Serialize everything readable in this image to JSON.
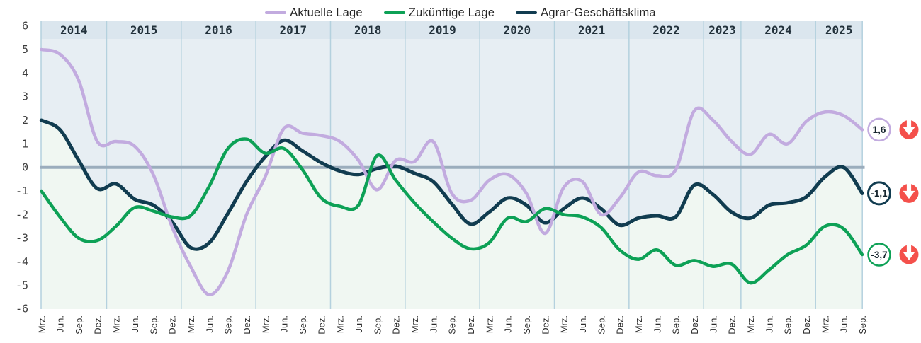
{
  "chart_data": {
    "type": "line",
    "title": "",
    "xlabel": "",
    "ylabel": "",
    "ylim": [
      -6,
      6
    ],
    "y_ticks": [
      6,
      5,
      4,
      3,
      2,
      1,
      0,
      -1,
      -2,
      -3,
      -4,
      -5,
      -6
    ],
    "baseline": 0,
    "grid": "vertical-year-separators",
    "legend_position": "top-center",
    "x_structure": [
      {
        "year": "2014",
        "months": [
          "Mrz.",
          "Jun.",
          "Sep.",
          "Dez."
        ]
      },
      {
        "year": "2015",
        "months": [
          "Mrz.",
          "Jun.",
          "Sep.",
          "Dez."
        ]
      },
      {
        "year": "2016",
        "months": [
          "Mrz.",
          "Jun.",
          "Sep.",
          "Dez."
        ]
      },
      {
        "year": "2017",
        "months": [
          "Mrz.",
          "Jun.",
          "Sep.",
          "Dez."
        ]
      },
      {
        "year": "2018",
        "months": [
          "Mrz.",
          "Jun.",
          "Sep.",
          "Dez."
        ]
      },
      {
        "year": "2019",
        "months": [
          "Mrz.",
          "Jun.",
          "Sep.",
          "Dez."
        ]
      },
      {
        "year": "2020",
        "months": [
          "Mrz.",
          "Jun.",
          "Sep.",
          "Dez."
        ]
      },
      {
        "year": "2021",
        "months": [
          "Mrz.",
          "Jun.",
          "Sep.",
          "Dez."
        ]
      },
      {
        "year": "2022",
        "months": [
          "Mrz.",
          "Jun.",
          "Sep.",
          "Dez."
        ]
      },
      {
        "year": "2023",
        "months": [
          "Jun.",
          "Dez."
        ]
      },
      {
        "year": "2024",
        "months": [
          "Mrz.",
          "Jun.",
          "Sep.",
          "Dez."
        ]
      },
      {
        "year": "2025",
        "months": [
          "Mrz.",
          "Jun.",
          "Sep."
        ]
      }
    ],
    "series": [
      {
        "name": "Aktuelle Lage",
        "color": "#c2abdf",
        "line_width": 4.5,
        "end_value_label": "1,6",
        "trend": "down",
        "values": [
          5.0,
          4.8,
          3.7,
          1.1,
          1.1,
          0.9,
          -0.3,
          -2.5,
          -4.2,
          -5.4,
          -4.4,
          -2.0,
          -0.4,
          1.65,
          1.45,
          1.35,
          1.1,
          0.3,
          -0.95,
          0.3,
          0.25,
          1.1,
          -1.1,
          -1.4,
          -0.55,
          -0.3,
          -1.1,
          -2.8,
          -0.85,
          -0.6,
          -2.0,
          -1.3,
          -0.2,
          -0.35,
          -0.1,
          2.4,
          2.0,
          1.1,
          0.55,
          1.4,
          1.0,
          1.95,
          2.35,
          2.2,
          1.6
        ]
      },
      {
        "name": "Zukünftige Lage",
        "color": "#0da156",
        "line_width": 4.5,
        "end_value_label": "-3,7",
        "trend": "down",
        "values": [
          -1.0,
          -2.1,
          -3.0,
          -3.1,
          -2.5,
          -1.7,
          -1.85,
          -2.1,
          -2.05,
          -0.8,
          0.8,
          1.2,
          0.6,
          0.8,
          -0.1,
          -1.3,
          -1.65,
          -1.6,
          0.5,
          -0.55,
          -1.5,
          -2.3,
          -3.0,
          -3.45,
          -3.2,
          -2.15,
          -2.3,
          -1.75,
          -2.0,
          -2.1,
          -2.55,
          -3.5,
          -3.9,
          -3.5,
          -4.15,
          -3.95,
          -4.2,
          -4.1,
          -4.9,
          -4.35,
          -3.7,
          -3.3,
          -2.5,
          -2.6,
          -3.7
        ]
      },
      {
        "name": "Agrar-Geschäftsklima",
        "color": "#113c50",
        "line_width": 5,
        "end_value_label": "-1,1",
        "trend": "down",
        "values": [
          2.0,
          1.6,
          0.3,
          -0.9,
          -0.7,
          -1.35,
          -1.6,
          -2.3,
          -3.4,
          -3.2,
          -1.95,
          -0.6,
          0.45,
          1.15,
          0.7,
          0.2,
          -0.15,
          -0.3,
          -0.05,
          0.05,
          -0.25,
          -0.6,
          -1.55,
          -2.4,
          -1.9,
          -1.3,
          -1.6,
          -2.35,
          -1.75,
          -1.3,
          -1.75,
          -2.45,
          -2.15,
          -2.05,
          -2.1,
          -0.75,
          -1.15,
          -1.9,
          -2.15,
          -1.6,
          -1.5,
          -1.25,
          -0.4,
          0.0,
          -1.1
        ]
      }
    ]
  },
  "legend": {
    "items": [
      {
        "label": "Aktuelle Lage",
        "color": "#c2abdf"
      },
      {
        "label": "Zukünftige Lage",
        "color": "#0da156"
      },
      {
        "label": "Agrar-Geschäftsklima",
        "color": "#113c50"
      }
    ]
  },
  "icons": {
    "trend_down": "circle-arrow-down-icon",
    "trend_down_color": "#f4504b",
    "arrow_glyph_color": "#ffffff"
  },
  "colors": {
    "fill_above_climate_line": "#e7eef3",
    "fill_below_climate_line": "#f0f7f2",
    "year_band": "#dbe6ee",
    "year_separator": "#b4d1de",
    "zero_line": "#9badbd",
    "badge_fill": "#ffffff",
    "badge_text": "#17262f",
    "axis_text": "#3d3d3d",
    "x_tick_text": "#2b2b2b",
    "year_text": "#22313b"
  }
}
